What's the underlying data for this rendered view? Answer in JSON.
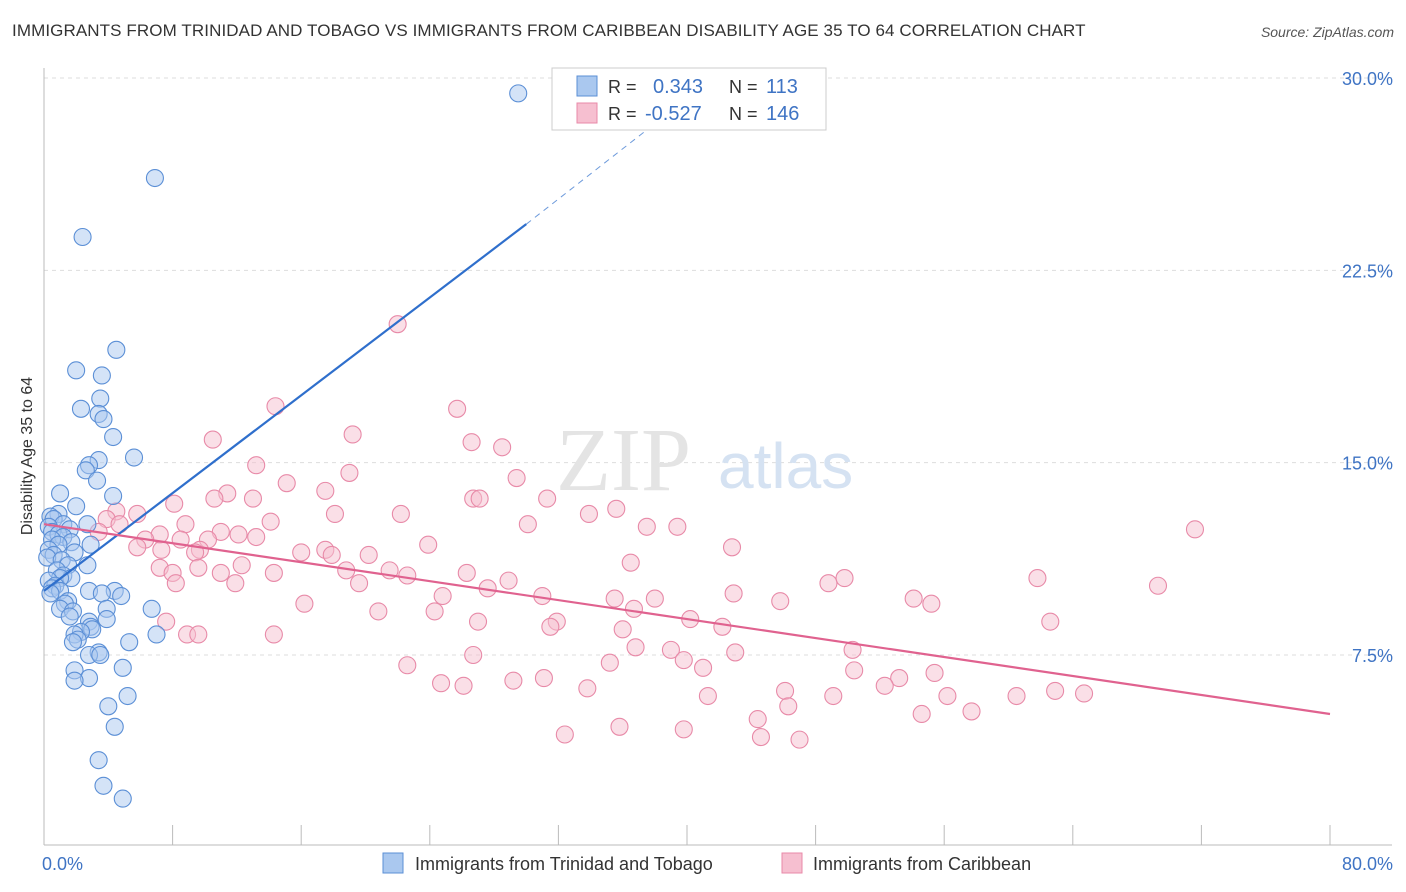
{
  "title": "IMMIGRANTS FROM TRINIDAD AND TOBAGO VS IMMIGRANTS FROM CARIBBEAN DISABILITY AGE 35 TO 64 CORRELATION CHART",
  "source": "Source: ZipAtlas.com",
  "watermark": {
    "zip": "ZIP",
    "atlas": "atlas"
  },
  "colors": {
    "blue_fill": "#aac8ef",
    "blue_stroke": "#5b8fd6",
    "blue_line": "#2f6fcc",
    "pink_fill": "#f6bfd0",
    "pink_stroke": "#e88aa8",
    "pink_line": "#e0628f",
    "grid": "#dddddd",
    "tick_text": "#3f74c4"
  },
  "legend": {
    "rows": [
      {
        "r_label": "R =",
        "r_value": "0.343",
        "n_label": "N =",
        "n_value": "113",
        "color": "blue"
      },
      {
        "r_label": "R =",
        "r_value": "-0.527",
        "n_label": "N =",
        "n_value": "146",
        "color": "pink"
      }
    ]
  },
  "chart_data": {
    "type": "scatter",
    "title": "IMMIGRANTS FROM TRINIDAD AND TOBAGO VS IMMIGRANTS FROM CARIBBEAN DISABILITY AGE 35 TO 64 CORRELATION CHART",
    "ylabel": "Disability Age 35 to 64",
    "xlabel": "",
    "xlim": [
      0,
      80
    ],
    "ylim": [
      0,
      31.5
    ],
    "y_ticks": [
      7.5,
      15.0,
      22.5,
      30.0
    ],
    "y_tick_labels": [
      "7.5%",
      "15.0%",
      "22.5%",
      "30.0%"
    ],
    "x_tick_labels": [
      "0.0%",
      "80.0%"
    ],
    "grid": "horizontal dashed",
    "legend_position": "top-center",
    "series": [
      {
        "name": "Immigrants from Trinidad and Tobago",
        "color": "blue",
        "R": 0.343,
        "N": 113,
        "trend": {
          "x": [
            0,
            30
          ],
          "y": [
            10.0,
            24.3
          ],
          "dashed_to": [
            40,
            29.2
          ]
        },
        "points": [
          [
            29.5,
            29.4
          ],
          [
            6.9,
            26.1
          ],
          [
            2.4,
            23.8
          ],
          [
            4.5,
            19.4
          ],
          [
            2.0,
            18.6
          ],
          [
            3.6,
            18.4
          ],
          [
            2.3,
            17.1
          ],
          [
            3.5,
            17.5
          ],
          [
            3.4,
            16.9
          ],
          [
            3.7,
            16.7
          ],
          [
            4.3,
            16.0
          ],
          [
            3.4,
            15.1
          ],
          [
            5.6,
            15.2
          ],
          [
            2.8,
            14.9
          ],
          [
            2.6,
            14.7
          ],
          [
            3.3,
            14.3
          ],
          [
            1.0,
            13.8
          ],
          [
            4.3,
            13.7
          ],
          [
            2.0,
            13.3
          ],
          [
            0.9,
            13.0
          ],
          [
            0.4,
            12.9
          ],
          [
            0.6,
            12.8
          ],
          [
            1.2,
            12.6
          ],
          [
            2.7,
            12.6
          ],
          [
            0.3,
            12.5
          ],
          [
            1.6,
            12.4
          ],
          [
            0.5,
            12.3
          ],
          [
            0.9,
            12.2
          ],
          [
            1.2,
            12.1
          ],
          [
            0.5,
            12.0
          ],
          [
            1.7,
            11.9
          ],
          [
            0.9,
            11.8
          ],
          [
            2.9,
            11.8
          ],
          [
            0.3,
            11.6
          ],
          [
            1.9,
            11.5
          ],
          [
            0.6,
            11.4
          ],
          [
            0.2,
            11.3
          ],
          [
            1.1,
            11.2
          ],
          [
            2.7,
            11.0
          ],
          [
            1.5,
            11.0
          ],
          [
            0.8,
            10.8
          ],
          [
            1.2,
            10.6
          ],
          [
            1.7,
            10.5
          ],
          [
            1.0,
            10.5
          ],
          [
            0.3,
            10.4
          ],
          [
            0.7,
            10.2
          ],
          [
            0.5,
            10.1
          ],
          [
            1.0,
            10.0
          ],
          [
            2.8,
            10.0
          ],
          [
            4.4,
            10.0
          ],
          [
            0.4,
            9.9
          ],
          [
            3.6,
            9.9
          ],
          [
            4.8,
            9.8
          ],
          [
            1.5,
            9.6
          ],
          [
            1.3,
            9.5
          ],
          [
            1.0,
            9.3
          ],
          [
            3.9,
            9.3
          ],
          [
            6.7,
            9.3
          ],
          [
            1.8,
            9.2
          ],
          [
            1.6,
            9.0
          ],
          [
            3.9,
            8.9
          ],
          [
            2.8,
            8.8
          ],
          [
            2.9,
            8.6
          ],
          [
            3.0,
            8.5
          ],
          [
            2.3,
            8.4
          ],
          [
            1.9,
            8.3
          ],
          [
            7.0,
            8.3
          ],
          [
            2.1,
            8.1
          ],
          [
            1.8,
            8.0
          ],
          [
            5.3,
            8.0
          ],
          [
            3.4,
            7.6
          ],
          [
            2.8,
            7.5
          ],
          [
            3.5,
            7.5
          ],
          [
            4.9,
            7.0
          ],
          [
            1.9,
            6.9
          ],
          [
            2.8,
            6.6
          ],
          [
            1.9,
            6.5
          ],
          [
            5.2,
            5.9
          ],
          [
            4.0,
            5.5
          ],
          [
            4.4,
            4.7
          ],
          [
            3.4,
            3.4
          ],
          [
            3.7,
            2.4
          ],
          [
            4.9,
            1.9
          ]
        ]
      },
      {
        "name": "Immigrants from Caribbean",
        "color": "pink",
        "R": -0.527,
        "N": 146,
        "trend": {
          "x": [
            0,
            80
          ],
          "y": [
            12.6,
            5.2
          ]
        },
        "points": [
          [
            22.0,
            20.4
          ],
          [
            14.4,
            17.2
          ],
          [
            25.7,
            17.1
          ],
          [
            10.5,
            15.9
          ],
          [
            19.2,
            16.1
          ],
          [
            26.6,
            15.8
          ],
          [
            28.5,
            15.6
          ],
          [
            13.2,
            14.9
          ],
          [
            19.0,
            14.6
          ],
          [
            29.4,
            14.4
          ],
          [
            15.1,
            14.2
          ],
          [
            17.5,
            13.9
          ],
          [
            11.4,
            13.8
          ],
          [
            10.6,
            13.6
          ],
          [
            13.0,
            13.6
          ],
          [
            26.7,
            13.6
          ],
          [
            27.1,
            13.6
          ],
          [
            31.3,
            13.6
          ],
          [
            8.1,
            13.4
          ],
          [
            18.1,
            13.0
          ],
          [
            22.2,
            13.0
          ],
          [
            33.9,
            13.0
          ],
          [
            35.6,
            13.2
          ],
          [
            4.5,
            13.1
          ],
          [
            5.8,
            13.0
          ],
          [
            3.9,
            12.8
          ],
          [
            14.1,
            12.7
          ],
          [
            4.7,
            12.6
          ],
          [
            8.8,
            12.6
          ],
          [
            30.1,
            12.6
          ],
          [
            37.5,
            12.5
          ],
          [
            39.4,
            12.5
          ],
          [
            71.6,
            12.4
          ],
          [
            3.4,
            12.3
          ],
          [
            11.0,
            12.3
          ],
          [
            12.1,
            12.2
          ],
          [
            7.2,
            12.2
          ],
          [
            13.2,
            12.1
          ],
          [
            6.3,
            12.0
          ],
          [
            8.5,
            12.0
          ],
          [
            10.2,
            12.0
          ],
          [
            23.9,
            11.8
          ],
          [
            42.8,
            11.7
          ],
          [
            5.8,
            11.7
          ],
          [
            7.3,
            11.6
          ],
          [
            9.7,
            11.6
          ],
          [
            17.5,
            11.6
          ],
          [
            16.0,
            11.5
          ],
          [
            20.2,
            11.4
          ],
          [
            17.9,
            11.4
          ],
          [
            9.4,
            11.5
          ],
          [
            12.3,
            11.0
          ],
          [
            36.5,
            11.1
          ],
          [
            9.6,
            10.9
          ],
          [
            18.8,
            10.8
          ],
          [
            26.3,
            10.7
          ],
          [
            7.2,
            10.9
          ],
          [
            8.0,
            10.7
          ],
          [
            14.3,
            10.7
          ],
          [
            21.5,
            10.8
          ],
          [
            11.0,
            10.7
          ],
          [
            61.8,
            10.5
          ],
          [
            8.2,
            10.3
          ],
          [
            22.6,
            10.6
          ],
          [
            28.9,
            10.4
          ],
          [
            27.6,
            10.1
          ],
          [
            49.8,
            10.5
          ],
          [
            48.8,
            10.3
          ],
          [
            69.3,
            10.2
          ],
          [
            19.6,
            10.3
          ],
          [
            11.9,
            10.3
          ],
          [
            24.8,
            9.8
          ],
          [
            31.0,
            9.8
          ],
          [
            35.5,
            9.7
          ],
          [
            38.0,
            9.7
          ],
          [
            42.9,
            9.9
          ],
          [
            45.8,
            9.6
          ],
          [
            54.1,
            9.7
          ],
          [
            55.2,
            9.5
          ],
          [
            16.2,
            9.5
          ],
          [
            24.3,
            9.2
          ],
          [
            20.8,
            9.2
          ],
          [
            36.7,
            9.3
          ],
          [
            27.0,
            8.8
          ],
          [
            31.9,
            8.8
          ],
          [
            40.2,
            8.9
          ],
          [
            42.2,
            8.6
          ],
          [
            62.6,
            8.8
          ],
          [
            7.6,
            8.8
          ],
          [
            36.0,
            8.5
          ],
          [
            31.5,
            8.6
          ],
          [
            8.9,
            8.3
          ],
          [
            9.6,
            8.3
          ],
          [
            14.3,
            8.3
          ],
          [
            36.8,
            7.8
          ],
          [
            39.0,
            7.7
          ],
          [
            43.0,
            7.6
          ],
          [
            50.3,
            7.7
          ],
          [
            26.7,
            7.5
          ],
          [
            35.2,
            7.2
          ],
          [
            39.8,
            7.3
          ],
          [
            41.0,
            7.0
          ],
          [
            50.4,
            6.9
          ],
          [
            55.4,
            6.8
          ],
          [
            53.2,
            6.6
          ],
          [
            33.8,
            6.2
          ],
          [
            46.1,
            6.1
          ],
          [
            49.1,
            5.9
          ],
          [
            41.3,
            5.9
          ],
          [
            52.3,
            6.3
          ],
          [
            56.2,
            5.9
          ],
          [
            57.7,
            5.3
          ],
          [
            60.5,
            5.9
          ],
          [
            29.2,
            6.5
          ],
          [
            31.1,
            6.6
          ],
          [
            22.6,
            7.1
          ],
          [
            24.7,
            6.4
          ],
          [
            26.1,
            6.3
          ],
          [
            46.3,
            5.5
          ],
          [
            44.4,
            5.0
          ],
          [
            54.6,
            5.2
          ],
          [
            44.6,
            4.3
          ],
          [
            35.8,
            4.7
          ],
          [
            39.8,
            4.6
          ],
          [
            32.4,
            4.4
          ],
          [
            47.0,
            4.2
          ],
          [
            62.9,
            6.1
          ],
          [
            64.7,
            6.0
          ]
        ]
      }
    ]
  },
  "bottom_legend": [
    {
      "label": "Immigrants from Trinidad and Tobago",
      "color": "blue"
    },
    {
      "label": "Immigrants from Caribbean",
      "color": "pink"
    }
  ]
}
